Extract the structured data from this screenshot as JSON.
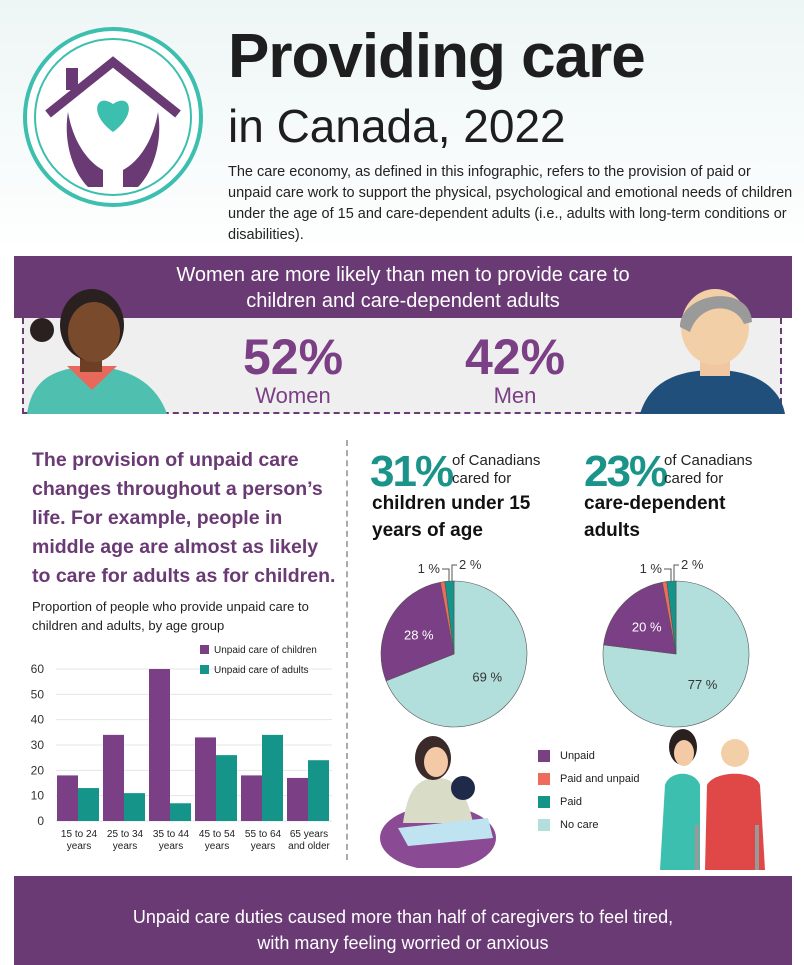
{
  "header": {
    "title_line1": "Providing care",
    "title_line2": "in Canada, 2022",
    "intro": "The care economy, as defined in this infographic, refers to the provision of paid or unpaid care work to support the physical, psychological and emotional needs of children under the age of 15 and care-dependent adults (i.e., adults with long-term conditions or disabilities)."
  },
  "banner": "Women are more likely than men to provide care to children and care-dependent adults",
  "stats": {
    "women_value": "52%",
    "women_label": "Women",
    "men_value": "42%",
    "men_label": "Men"
  },
  "left": {
    "heading": "The provision of unpaid care changes throughout a person’s life. For example, people in middle age are almost as likely to care for adults as for children.",
    "chart_subtitle": "Proportion of people who provide unpaid care to children and adults, by age group"
  },
  "children_block": {
    "pct": "31%",
    "text": "of Canadians cared for",
    "bold": "children under 15 years of age"
  },
  "adults_block": {
    "pct": "23%",
    "text": "of Canadians cared for",
    "bold": "care-dependent adults"
  },
  "colors": {
    "purple": "#7a3f84",
    "teal": "#15948a",
    "salmon": "#ef6b5e",
    "light_teal": "#b2dfdb",
    "banner": "#6a3a74"
  },
  "footer": "Unpaid care duties caused more than half of caregivers to feel tired, with many feeling worried or anxious",
  "chart_data": [
    {
      "type": "bar",
      "title": "Proportion of people who provide unpaid care to children and adults, by age group",
      "categories": [
        "15 to 24 years",
        "25 to 34 years",
        "35 to 44 years",
        "45 to 54 years",
        "55 to 64 years",
        "65 years and older"
      ],
      "series": [
        {
          "name": "Unpaid care of children",
          "values": [
            18,
            34,
            60,
            33,
            18,
            17
          ]
        },
        {
          "name": "Unpaid care of adults",
          "values": [
            13,
            11,
            7,
            26,
            34,
            24
          ]
        }
      ],
      "yticks": [
        "0",
        "10",
        "20",
        "30",
        "40",
        "50",
        "60"
      ],
      "ylim": [
        0,
        60
      ],
      "legend": "top-right"
    },
    {
      "type": "pie",
      "title": "children under 15 years of age",
      "slices": [
        {
          "name": "No care",
          "value": 69,
          "label": "69 %"
        },
        {
          "name": "Unpaid",
          "value": 28,
          "label": "28 %"
        },
        {
          "name": "Paid and unpaid",
          "value": 1,
          "label": "1 %"
        },
        {
          "name": "Paid",
          "value": 2,
          "label": "2 %"
        }
      ]
    },
    {
      "type": "pie",
      "title": "care-dependent adults",
      "slices": [
        {
          "name": "No care",
          "value": 77,
          "label": "77 %"
        },
        {
          "name": "Unpaid",
          "value": 20,
          "label": "20 %"
        },
        {
          "name": "Paid and unpaid",
          "value": 1,
          "label": "1 %"
        },
        {
          "name": "Paid",
          "value": 2,
          "label": "2 %"
        }
      ]
    }
  ],
  "pie_legend": [
    "Unpaid",
    "Paid and unpaid",
    "Paid",
    "No care"
  ]
}
